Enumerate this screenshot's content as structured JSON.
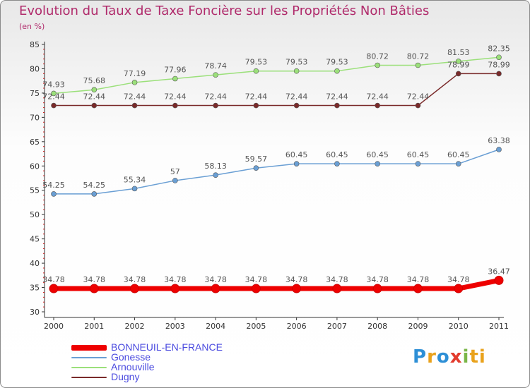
{
  "chart_data": {
    "type": "line",
    "title": "Evolution du Taux de Taxe Foncière sur les Propriétés Non Bâties",
    "subtitle": "(en %)",
    "x": [
      "2000",
      "2001",
      "2002",
      "2003",
      "2004",
      "2005",
      "2006",
      "2007",
      "2008",
      "2009",
      "2010",
      "2011"
    ],
    "yticks": [
      "30",
      "35",
      "40",
      "45",
      "50",
      "55",
      "60",
      "65",
      "70",
      "75",
      "80",
      "85"
    ],
    "ylim": [
      30,
      85
    ],
    "grid": false,
    "legend_position": "bottom-left",
    "series": [
      {
        "name": "BONNEUIL-EN-FRANCE",
        "color": "#ee0000",
        "values": [
          34.78,
          34.78,
          34.78,
          34.78,
          34.78,
          34.78,
          34.78,
          34.78,
          34.78,
          34.78,
          34.78,
          36.47
        ],
        "labels": [
          "34.78",
          "34.78",
          "34.78",
          "34.78",
          "34.78",
          "34.78",
          "34.78",
          "34.78",
          "34.78",
          "34.78",
          "34.78",
          "36.47"
        ]
      },
      {
        "name": "Gonesse",
        "color": "#6a9fd4",
        "values": [
          54.25,
          54.25,
          55.34,
          57,
          58.13,
          59.57,
          60.45,
          60.45,
          60.45,
          60.45,
          60.45,
          63.38
        ],
        "labels": [
          "54.25",
          "54.25",
          "55.34",
          "57",
          "58.13",
          "59.57",
          "60.45",
          "60.45",
          "60.45",
          "60.45",
          "60.45",
          "63.38"
        ]
      },
      {
        "name": "Arnouville",
        "color": "#9be07a",
        "values": [
          74.93,
          75.68,
          77.19,
          77.96,
          78.74,
          79.53,
          79.53,
          79.53,
          80.72,
          80.72,
          81.53,
          82.35
        ],
        "labels": [
          "74.93",
          "75.68",
          "77.19",
          "77.96",
          "78.74",
          "79.53",
          "79.53",
          "79.53",
          "80.72",
          "80.72",
          "81.53",
          "82.35"
        ]
      },
      {
        "name": "Dugny",
        "color": "#7a2a2a",
        "values": [
          72.44,
          72.44,
          72.44,
          72.44,
          72.44,
          72.44,
          72.44,
          72.44,
          72.44,
          72.44,
          78.99,
          78.99
        ],
        "labels": [
          "72.44",
          "72.44",
          "72.44",
          "72.44",
          "72.44",
          "72.44",
          "72.44",
          "72.44",
          "72.44",
          "72.44",
          "78.99",
          "78.99"
        ]
      }
    ]
  },
  "logo": {
    "letters": [
      "P",
      "r",
      "o",
      "x",
      "i",
      "ti"
    ]
  }
}
